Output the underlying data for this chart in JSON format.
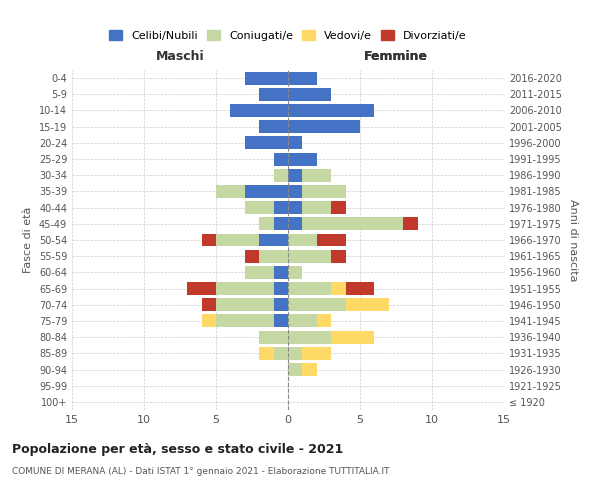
{
  "age_groups": [
    "100+",
    "95-99",
    "90-94",
    "85-89",
    "80-84",
    "75-79",
    "70-74",
    "65-69",
    "60-64",
    "55-59",
    "50-54",
    "45-49",
    "40-44",
    "35-39",
    "30-34",
    "25-29",
    "20-24",
    "15-19",
    "10-14",
    "5-9",
    "0-4"
  ],
  "birth_years": [
    "≤ 1920",
    "1921-1925",
    "1926-1930",
    "1931-1935",
    "1936-1940",
    "1941-1945",
    "1946-1950",
    "1951-1955",
    "1956-1960",
    "1961-1965",
    "1966-1970",
    "1971-1975",
    "1976-1980",
    "1981-1985",
    "1986-1990",
    "1991-1995",
    "1996-2000",
    "2001-2005",
    "2006-2010",
    "2011-2015",
    "2016-2020"
  ],
  "colors": {
    "celibi": "#4472c4",
    "coniugati": "#c5d8a4",
    "vedovi": "#ffd966",
    "divorziati": "#c0392b"
  },
  "maschi": {
    "celibi": [
      0,
      0,
      0,
      0,
      0,
      1,
      1,
      1,
      1,
      0,
      2,
      1,
      1,
      3,
      0,
      1,
      3,
      2,
      4,
      2,
      3
    ],
    "coniugati": [
      0,
      0,
      0,
      1,
      2,
      4,
      4,
      4,
      2,
      2,
      3,
      1,
      2,
      2,
      1,
      0,
      0,
      0,
      0,
      0,
      0
    ],
    "vedovi": [
      0,
      0,
      0,
      1,
      0,
      1,
      0,
      0,
      0,
      0,
      0,
      0,
      0,
      0,
      0,
      0,
      0,
      0,
      0,
      0,
      0
    ],
    "divorziati": [
      0,
      0,
      0,
      0,
      0,
      0,
      1,
      2,
      0,
      1,
      1,
      0,
      0,
      0,
      0,
      0,
      0,
      0,
      0,
      0,
      0
    ]
  },
  "femmine": {
    "celibi": [
      0,
      0,
      0,
      0,
      0,
      0,
      0,
      0,
      0,
      0,
      0,
      1,
      1,
      1,
      1,
      2,
      1,
      5,
      6,
      3,
      2
    ],
    "coniugati": [
      0,
      0,
      1,
      1,
      3,
      2,
      4,
      3,
      1,
      3,
      2,
      7,
      2,
      3,
      2,
      0,
      0,
      0,
      0,
      0,
      0
    ],
    "vedovi": [
      0,
      0,
      1,
      2,
      3,
      1,
      3,
      1,
      0,
      0,
      0,
      0,
      0,
      0,
      0,
      0,
      0,
      0,
      0,
      0,
      0
    ],
    "divorziati": [
      0,
      0,
      0,
      0,
      0,
      0,
      0,
      2,
      0,
      1,
      2,
      1,
      1,
      0,
      0,
      0,
      0,
      0,
      0,
      0,
      0
    ]
  },
  "xlim": 15,
  "title": "Popolazione per età, sesso e stato civile - 2021",
  "subtitle": "COMUNE DI MERANA (AL) - Dati ISTAT 1° gennaio 2021 - Elaborazione TUTTITALIA.IT",
  "xlabel_left": "Maschi",
  "xlabel_right": "Femmine",
  "ylabel_left": "Fasce di età",
  "ylabel_right": "Anni di nascita",
  "legend_labels": [
    "Celibi/Nubili",
    "Coniugati/e",
    "Vedovi/e",
    "Divorziati/e"
  ],
  "bg_color": "#ffffff",
  "grid_color": "#cccccc"
}
